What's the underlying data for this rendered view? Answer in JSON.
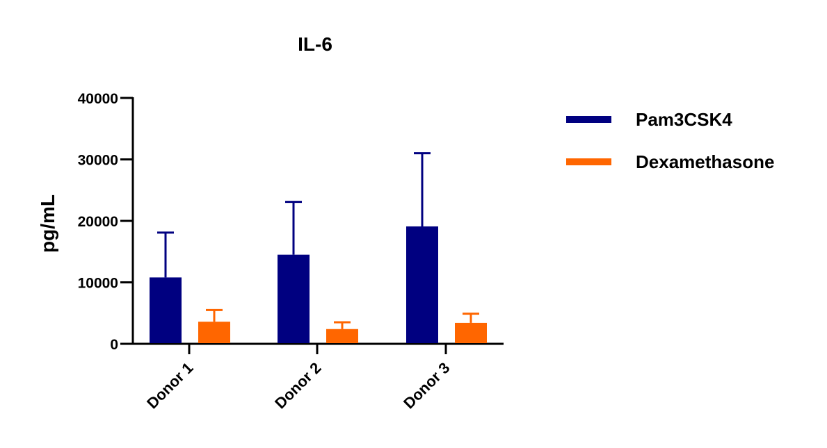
{
  "chart_data": {
    "type": "bar",
    "title": "IL-6",
    "ylabel": "pg/mL",
    "xlabel": "",
    "ylim": [
      0,
      40000
    ],
    "yticks": [
      0,
      10000,
      20000,
      30000,
      40000
    ],
    "categories": [
      "Donor 1",
      "Donor 2",
      "Donor 3"
    ],
    "series": [
      {
        "name": "Pam3CSK4",
        "color": "#000080",
        "values": [
          10800,
          14500,
          19100
        ],
        "error": [
          7300,
          8600,
          11900
        ]
      },
      {
        "name": "Dexamethasone",
        "color": "#ff6600",
        "values": [
          3600,
          2400,
          3400
        ],
        "error": [
          1900,
          1100,
          1500
        ]
      }
    ],
    "legend_position": "right",
    "grid": false
  }
}
